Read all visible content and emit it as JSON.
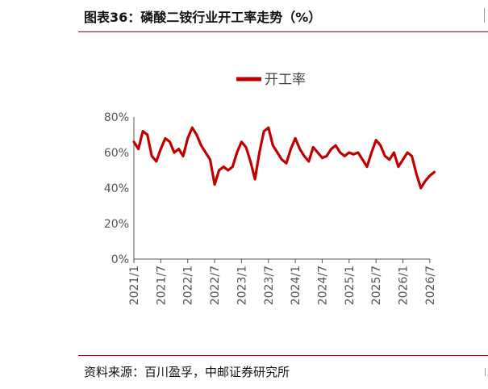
{
  "header": {
    "title": "图表36：磷酸二铵行业开工率走势（%）"
  },
  "footer": {
    "source": "资料来源：百川盈孚，中邮证券研究所"
  },
  "colors": {
    "accent": "#c00000",
    "series_line": "#c00000"
  },
  "chart_data": {
    "type": "line",
    "title": "",
    "xlabel": "",
    "ylabel": "",
    "ylim": [
      0,
      80
    ],
    "y_ticks": [
      "0%",
      "20%",
      "40%",
      "60%",
      "80%"
    ],
    "x_tick_labels": [
      "2021/1",
      "2021/7",
      "2022/1",
      "2022/7",
      "2023/1",
      "2023/7",
      "2024/1",
      "2024/7",
      "2025/1",
      "2025/7",
      "2026/1",
      "2026/7"
    ],
    "legend": {
      "position": "top-center"
    },
    "grid": false,
    "series": [
      {
        "name": "开工率",
        "x": [
          "2021/1",
          "2021/2",
          "2021/3",
          "2021/4",
          "2021/5",
          "2021/6",
          "2021/7",
          "2021/8",
          "2021/9",
          "2021/10",
          "2021/11",
          "2021/12",
          "2022/1",
          "2022/2",
          "2022/3",
          "2022/4",
          "2022/5",
          "2022/6",
          "2022/7",
          "2022/8",
          "2022/9",
          "2022/10",
          "2022/11",
          "2022/12",
          "2023/1",
          "2023/2",
          "2023/3",
          "2023/4",
          "2023/5",
          "2023/6",
          "2023/7",
          "2023/8",
          "2023/9",
          "2023/10",
          "2023/11",
          "2023/12",
          "2024/1",
          "2024/2",
          "2024/3",
          "2024/4",
          "2024/5",
          "2024/6",
          "2024/7",
          "2024/8",
          "2024/9",
          "2024/10",
          "2024/11",
          "2024/12",
          "2025/1",
          "2025/2",
          "2025/3",
          "2025/4",
          "2025/5",
          "2025/6",
          "2025/7",
          "2025/8",
          "2025/9",
          "2025/10",
          "2025/11",
          "2025/12",
          "2026/1",
          "2026/2",
          "2026/3",
          "2026/4",
          "2026/5",
          "2026/6",
          "2026/7",
          "2026/8"
        ],
        "values": [
          66,
          62,
          72,
          70,
          58,
          55,
          62,
          68,
          66,
          60,
          62,
          58,
          68,
          74,
          70,
          64,
          60,
          56,
          42,
          50,
          52,
          50,
          52,
          60,
          66,
          63,
          55,
          45,
          60,
          72,
          74,
          64,
          60,
          56,
          54,
          62,
          68,
          62,
          58,
          55,
          63,
          60,
          57,
          58,
          62,
          64,
          60,
          58,
          60,
          59,
          60,
          56,
          52,
          60,
          67,
          64,
          58,
          56,
          60,
          52,
          56,
          60,
          58,
          48,
          40,
          44,
          47,
          49
        ]
      }
    ]
  }
}
